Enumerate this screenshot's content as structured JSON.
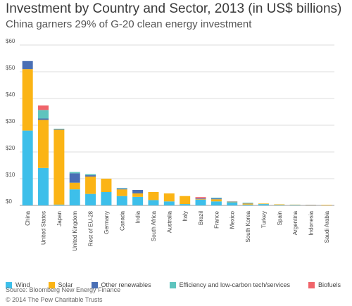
{
  "chart_data": {
    "type": "bar",
    "stacked": true,
    "title": "Investment by Country and Sector, 2013 (in US$ billions)",
    "subtitle": "China garners 29% of G-20 clean energy investment",
    "ylim": [
      0,
      60
    ],
    "yticks": [
      "$0",
      "$10",
      "$20",
      "$30",
      "$40",
      "$50",
      "$60"
    ],
    "ytick_values": [
      0,
      10,
      20,
      30,
      40,
      50,
      60
    ],
    "grid": true,
    "legend_position": "bottom",
    "categories": [
      "China",
      "United States",
      "Japan",
      "United Kingdom",
      "Rest of EU-28",
      "Germany",
      "Canada",
      "India",
      "South Africa",
      "Australia",
      "Italy",
      "Brazil",
      "France",
      "Mexico",
      "South Korea",
      "Turkey",
      "Spain",
      "Argentina",
      "Indonesia",
      "Saudi Arabia"
    ],
    "series": [
      {
        "name": "Wind",
        "color": "#3dbfea",
        "values": [
          28,
          14,
          0.3,
          6,
          4.3,
          5,
          3.5,
          3.2,
          2,
          1.5,
          0.5,
          2.2,
          1.5,
          1.2,
          0.3,
          0.5,
          0.2,
          0.2,
          0,
          0
        ]
      },
      {
        "name": "Solar",
        "color": "#fbb415",
        "values": [
          23,
          18,
          28,
          2.5,
          6.5,
          5,
          2.5,
          1.3,
          3,
          3,
          3,
          0.2,
          0.8,
          0.2,
          0.4,
          0.2,
          0.2,
          0.1,
          0.1,
          0.2
        ]
      },
      {
        "name": "Other renewables",
        "color": "#4a6fb5",
        "values": [
          3,
          0.5,
          0.2,
          3.5,
          0.5,
          0,
          0.3,
          1.3,
          0,
          0,
          0,
          0.2,
          0.3,
          0.1,
          0.1,
          0,
          0,
          0,
          0.1,
          0
        ]
      },
      {
        "name": "Efficiency and low-carbon tech/services",
        "color": "#5ec4be",
        "values": [
          0,
          3.2,
          0.2,
          0.5,
          0.4,
          0,
          0.2,
          0,
          0,
          0,
          0,
          0,
          0.3,
          0,
          0.2,
          0,
          0,
          0,
          0,
          0
        ]
      },
      {
        "name": "Biofuels",
        "color": "#f0646a",
        "values": [
          0,
          1.7,
          0,
          0,
          0,
          0,
          0,
          0,
          0,
          0,
          0,
          0.5,
          0,
          0,
          0,
          0,
          0,
          0,
          0,
          0
        ]
      }
    ]
  },
  "footer": {
    "source": "Source: Bloomberg New Energy Finance",
    "copyright": "© 2014 The Pew Charitable Trusts"
  }
}
